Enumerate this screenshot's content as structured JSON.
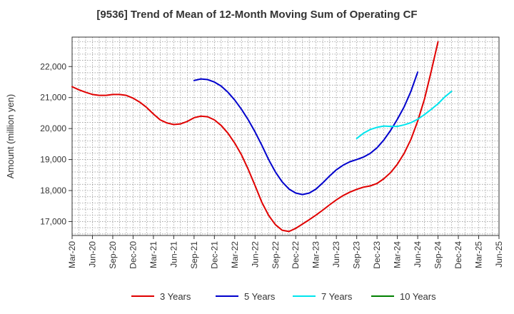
{
  "chart_data": {
    "type": "line",
    "title": "[9536]  Trend of Mean of 12-Month Moving Sum of Operating CF",
    "xlabel": "",
    "ylabel": "Amount (million yen)",
    "ylim": [
      16550,
      22950
    ],
    "y_ticks": [
      17000,
      18000,
      19000,
      20000,
      21000,
      22000
    ],
    "y_tick_labels": [
      "17,000",
      "18,000",
      "19,000",
      "20,000",
      "21,000",
      "22,000"
    ],
    "x_range": [
      "Mar-20",
      "Jun-25"
    ],
    "x_tick_labels": [
      "Mar-20",
      "Jun-20",
      "Sep-20",
      "Dec-20",
      "Mar-21",
      "Jun-21",
      "Sep-21",
      "Dec-21",
      "Mar-22",
      "Jun-22",
      "Sep-22",
      "Dec-22",
      "Mar-23",
      "Jun-23",
      "Sep-23",
      "Dec-23",
      "Mar-24",
      "Jun-24",
      "Sep-24",
      "Dec-24",
      "Mar-25",
      "Jun-25"
    ],
    "grid": true,
    "legend_position": "bottom",
    "series": [
      {
        "name": "3 Years",
        "color": "#e00000",
        "start": "Mar-20",
        "values": [
          21350,
          21250,
          21170,
          21100,
          21070,
          21070,
          21100,
          21100,
          21070,
          20980,
          20850,
          20680,
          20470,
          20280,
          20180,
          20130,
          20150,
          20230,
          20350,
          20400,
          20380,
          20280,
          20100,
          19850,
          19530,
          19150,
          18680,
          18160,
          17620,
          17200,
          16900,
          16720,
          16680,
          16780,
          16920,
          17060,
          17210,
          17370,
          17540,
          17700,
          17840,
          17950,
          18040,
          18110,
          18150,
          18230,
          18380,
          18580,
          18850,
          19200,
          19650,
          20240,
          20950,
          21850,
          22800
        ]
      },
      {
        "name": "5 Years",
        "color": "#0000cc",
        "start": "Sep-21",
        "values": [
          21550,
          21600,
          21580,
          21500,
          21370,
          21170,
          20920,
          20620,
          20280,
          19890,
          19460,
          19000,
          18600,
          18280,
          18050,
          17920,
          17870,
          17920,
          18050,
          18250,
          18470,
          18670,
          18820,
          18930,
          19000,
          19080,
          19200,
          19380,
          19630,
          19940,
          20300,
          20700,
          21200,
          21820
        ]
      },
      {
        "name": "7 Years",
        "color": "#00e5ee",
        "start": "Sep-23",
        "values": [
          19680,
          19850,
          19970,
          20040,
          20080,
          20070,
          20070,
          20120,
          20190,
          20300,
          20450,
          20620,
          20800,
          21020,
          21200
        ]
      },
      {
        "name": "10 Years",
        "color": "#008000",
        "start": "Mar-20",
        "values": []
      }
    ]
  }
}
